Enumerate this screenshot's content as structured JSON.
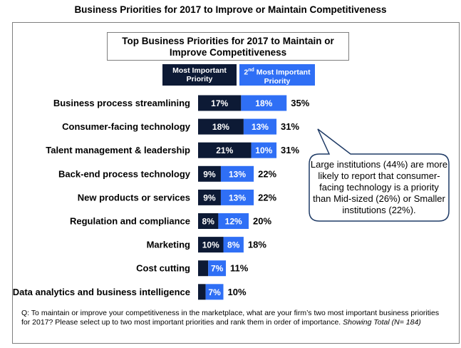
{
  "page_title": "Business Priorities for 2017 to Improve or Maintain Competitiveness",
  "legend": {
    "series1_label": "Most Important Priority",
    "series2_label_main": "2",
    "series2_label_sup": "nd",
    "series2_label_rest": " Most Important Priority"
  },
  "colors": {
    "series1": "#0d1a35",
    "series2": "#2f6ff5",
    "callout_border": "#1f3b66"
  },
  "callout_text": "Large institutions (44%) are more likely to report that consumer-facing technology is a priority than Mid-sized (26%) or Smaller institutions (22%).",
  "footnote": {
    "question": "Q: To maintain or improve your competitiveness in the marketplace, what are your firm’s two most important business priorities for 2017?  Please select up to two most important priorities and rank them in order of importance. ",
    "showing": "Showing Total (N= 184)"
  },
  "chart_data": {
    "type": "bar",
    "orientation": "horizontal",
    "stacked": true,
    "title": "Top Business Priorities for 2017 to Maintain or Improve Competitiveness",
    "categories": [
      "Business process streamlining",
      "Consumer-facing technology",
      "Talent management & leadership",
      "Back-end process technology",
      "New products or services",
      "Regulation and compliance",
      "Marketing",
      "Cost cutting",
      "Data analytics and business intelligence"
    ],
    "series": [
      {
        "name": "Most Important Priority",
        "values": [
          17,
          18,
          21,
          9,
          9,
          8,
          10,
          4,
          3
        ],
        "labels": [
          "17%",
          "18%",
          "21%",
          "9%",
          "9%",
          "8%",
          "10%",
          "",
          ""
        ]
      },
      {
        "name": "2nd Most Important Priority",
        "values": [
          18,
          13,
          10,
          13,
          13,
          12,
          8,
          7,
          7
        ],
        "labels": [
          "18%",
          "13%",
          "10%",
          "13%",
          "13%",
          "12%",
          "8%",
          "7%",
          "7%"
        ]
      }
    ],
    "totals": [
      "35%",
      "31%",
      "31%",
      "22%",
      "22%",
      "20%",
      "18%",
      "11%",
      "10%"
    ],
    "legend_position": "top",
    "grid": false
  }
}
